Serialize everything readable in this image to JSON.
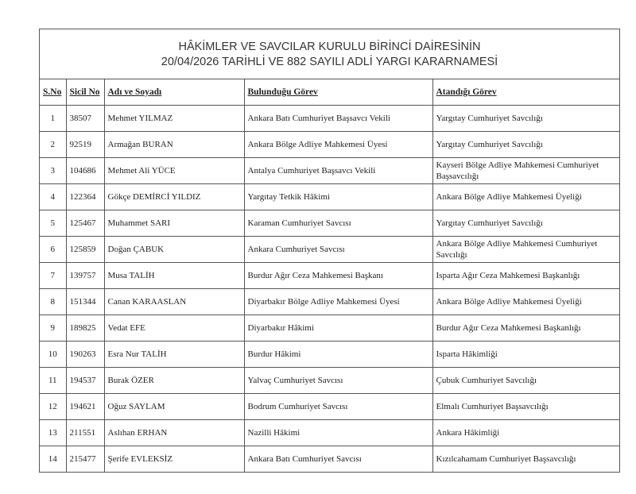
{
  "title": {
    "line1": "HÂKİMLER VE SAVCILAR KURULU BİRİNCİ DAİRESİNİN",
    "line2": "20/04/2026 TARİHLİ VE 882 SAYILI ADLİ YARGI KARARNAMESİ"
  },
  "headers": {
    "sno": "S.No",
    "sicil": "Sicil No",
    "name": "Adı ve Soyadı",
    "current": "Bulunduğu Görev",
    "assigned": "Atandığı Görev"
  },
  "rows": [
    {
      "sno": "1",
      "sicil": "38507",
      "name": "Mehmet YILMAZ",
      "current": "Ankara Batı Cumhuriyet Başsavcı Vekili",
      "assigned": "Yargıtay Cumhuriyet Savcılığı"
    },
    {
      "sno": "2",
      "sicil": "92519",
      "name": "Armağan BURAN",
      "current": "Ankara Bölge Adliye Mahkemesi Üyesi",
      "assigned": "Yargıtay Cumhuriyet Savcılığı"
    },
    {
      "sno": "3",
      "sicil": "104686",
      "name": "Mehmet Ali YÜCE",
      "current": "Antalya Cumhuriyet Başsavcı Vekili",
      "assigned": "Kayseri Bölge Adliye Mahkemesi Cumhuriyet Başsavcılığı"
    },
    {
      "sno": "4",
      "sicil": "122364",
      "name": "Gökçe DEMİRCİ YILDIZ",
      "current": "Yargıtay Tetkik Hâkimi",
      "assigned": "Ankara Bölge Adliye Mahkemesi Üyeliği"
    },
    {
      "sno": "5",
      "sicil": "125467",
      "name": "Muhammet SARI",
      "current": "Karaman Cumhuriyet Savcısı",
      "assigned": "Yargıtay Cumhuriyet Savcılığı"
    },
    {
      "sno": "6",
      "sicil": "125859",
      "name": "Doğan ÇABUK",
      "current": "Ankara Cumhuriyet Savcısı",
      "assigned": "Ankara Bölge Adliye Mahkemesi Cumhuriyet Savcılığı"
    },
    {
      "sno": "7",
      "sicil": "139757",
      "name": "Musa TALİH",
      "current": "Burdur Ağır Ceza Mahkemesi Başkanı",
      "assigned": "Isparta Ağır Ceza Mahkemesi Başkanlığı"
    },
    {
      "sno": "8",
      "sicil": "151344",
      "name": "Canan KARAASLAN",
      "current": "Diyarbakır Bölge Adliye Mahkemesi Üyesi",
      "assigned": "Ankara Bölge Adliye Mahkemesi Üyeliği"
    },
    {
      "sno": "9",
      "sicil": "189825",
      "name": "Vedat EFE",
      "current": "Diyarbakır Hâkimi",
      "assigned": "Burdur Ağır Ceza Mahkemesi Başkanlığı"
    },
    {
      "sno": "10",
      "sicil": "190263",
      "name": "Esra Nur TALİH",
      "current": "Burdur Hâkimi",
      "assigned": "Isparta Hâkimliği"
    },
    {
      "sno": "11",
      "sicil": "194537",
      "name": "Burak ÖZER",
      "current": "Yalvaç Cumhuriyet Savcısı",
      "assigned": "Çubuk Cumhuriyet Savcılığı"
    },
    {
      "sno": "12",
      "sicil": "194621",
      "name": "Oğuz SAYLAM",
      "current": "Bodrum Cumhuriyet Savcısı",
      "assigned": "Elmalı Cumhuriyet Başsavcılığı"
    },
    {
      "sno": "13",
      "sicil": "211551",
      "name": "Aslıhan ERHAN",
      "current": "Nazilli Hâkimi",
      "assigned": "Ankara Hâkimliği"
    },
    {
      "sno": "14",
      "sicil": "215477",
      "name": "Şerife EVLEKSİZ",
      "current": "Ankara Batı Cumhuriyet Savcısı",
      "assigned": "Kızılcahamam Cumhuriyet Başsavcılığı"
    }
  ]
}
